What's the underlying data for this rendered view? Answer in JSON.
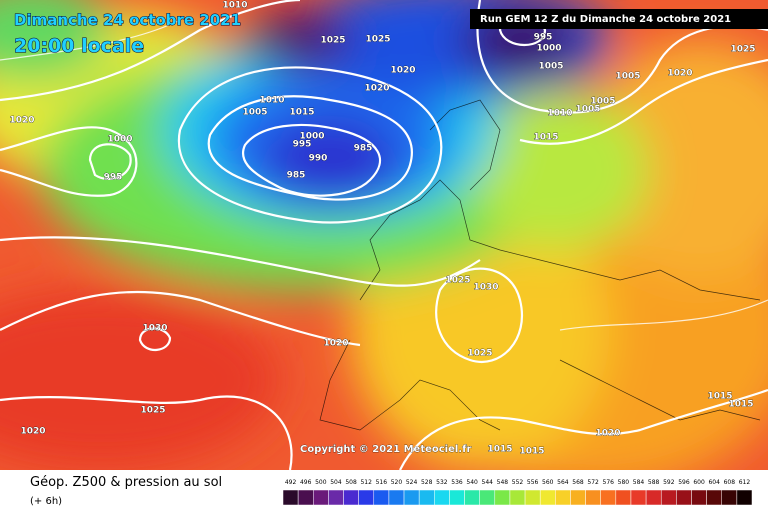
{
  "header": {
    "date": "Dimanche 24 octobre 2021",
    "time": "20:00 locale",
    "run": "Run GEM 12 Z du Dimanche 24 octobre 2021"
  },
  "map": {
    "isobar_labels": [
      "1010",
      "1025",
      "1025",
      "1020",
      "1020",
      "1010",
      "1005",
      "1015",
      "1000",
      "995",
      "990",
      "985",
      "985",
      "1000",
      "995",
      "1020",
      "995",
      "1000",
      "1005",
      "1005",
      "1020",
      "1025",
      "1005",
      "1005",
      "1010",
      "1015",
      "1025",
      "1030",
      "1030",
      "1020",
      "1025",
      "1025",
      "1020",
      "1015",
      "1015",
      "1020",
      "1015",
      "1015"
    ],
    "copyright": "Copyright © 2021 Meteociel.fr"
  },
  "footer": {
    "title": "Géop. Z500 & pression au sol",
    "step": "(+ 6h)"
  },
  "legend": {
    "labels": [
      492,
      496,
      500,
      504,
      508,
      512,
      516,
      520,
      524,
      528,
      532,
      536,
      540,
      544,
      548,
      552,
      556,
      560,
      564,
      568,
      572,
      576,
      580,
      584,
      588,
      592,
      596,
      600,
      604,
      608,
      612
    ],
    "colors": [
      "#2a0a2a",
      "#4a0f4f",
      "#6a1a7a",
      "#6a2aa8",
      "#4a2ad0",
      "#2a3ae8",
      "#1a5af0",
      "#1a7af0",
      "#1a9af0",
      "#1abaf0",
      "#1ad8f0",
      "#1ae8d8",
      "#2ae8a8",
      "#4ae878",
      "#7ae848",
      "#a8e838",
      "#d0e830",
      "#f0e830",
      "#f8d028",
      "#f8b020",
      "#f89020",
      "#f87020",
      "#f05020",
      "#e83a28",
      "#d82a28",
      "#b81a20",
      "#981018",
      "#780a10",
      "#580808",
      "#380404",
      "#100000"
    ]
  }
}
